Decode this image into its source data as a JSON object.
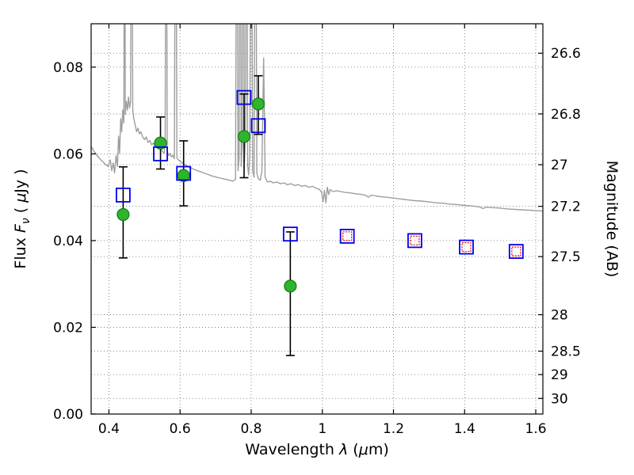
{
  "figure": {
    "background": "#ffffff"
  },
  "chart_data": {
    "type": "scatter",
    "title": "",
    "xlabel": "Wavelength λ (μm)",
    "xlabel_parts": [
      {
        "t": "Wavelength  "
      },
      {
        "t": "λ",
        "i": true
      },
      {
        "t": " ("
      },
      {
        "t": "μ",
        "i": true
      },
      {
        "t": "m)"
      }
    ],
    "ylabel": "Flux Fν ( μJy )",
    "ylabel_parts": [
      {
        "t": "Flux  "
      },
      {
        "t": "F",
        "i": true
      },
      {
        "t": "ν",
        "i": true,
        "sub": true
      },
      {
        "t": "  ( "
      },
      {
        "t": "μ",
        "i": true
      },
      {
        "t": "Jy )"
      }
    ],
    "right_axis_label": "Magnitude (AB)",
    "xlim": [
      0.35,
      1.62
    ],
    "ylim": [
      0.0,
      0.09
    ],
    "grid": true,
    "x_ticks": [
      0.4,
      0.6,
      0.8,
      1.0,
      1.2,
      1.4,
      1.6
    ],
    "x_tick_labels": [
      "0.4",
      "0.6",
      "0.8",
      "1",
      "1.2",
      "1.4",
      "1.6"
    ],
    "y_ticks": [
      0.0,
      0.02,
      0.04,
      0.06,
      0.08
    ],
    "y_tick_labels": [
      "0.00",
      "0.02",
      "0.04",
      "0.06",
      "0.08"
    ],
    "right_ticks": [
      {
        "label": "26.6",
        "flux": 0.0832
      },
      {
        "label": "26.8",
        "flux": 0.0692
      },
      {
        "label": "27",
        "flux": 0.0575
      },
      {
        "label": "27.2",
        "flux": 0.0479
      },
      {
        "label": "27.5",
        "flux": 0.0363
      },
      {
        "label": "28",
        "flux": 0.0229
      },
      {
        "label": "28.5",
        "flux": 0.0145
      },
      {
        "label": "29",
        "flux": 0.0091
      },
      {
        "label": "30",
        "flux": 0.0036
      }
    ],
    "colors": {
      "spectrum": "#9e9e9e",
      "observed_fill": "#2db52d",
      "observed_edge": "#157a15",
      "model_square": "#0000ee",
      "red_square": "#ee1111",
      "errorbar": "#000000",
      "grid": "#555555",
      "axis": "#000000"
    },
    "series": [
      {
        "name": "model-spectrum",
        "type": "line",
        "points": [
          [
            0.35,
            0.0617
          ],
          [
            0.358,
            0.0606
          ],
          [
            0.366,
            0.0597
          ],
          [
            0.374,
            0.0589
          ],
          [
            0.382,
            0.0582
          ],
          [
            0.39,
            0.0576
          ],
          [
            0.398,
            0.0571
          ],
          [
            0.404,
            0.0586
          ],
          [
            0.408,
            0.0561
          ],
          [
            0.412,
            0.0579
          ],
          [
            0.416,
            0.0556
          ],
          [
            0.42,
            0.0596
          ],
          [
            0.424,
            0.0571
          ],
          [
            0.427,
            0.0641
          ],
          [
            0.43,
            0.0601
          ],
          [
            0.433,
            0.0681
          ],
          [
            0.436,
            0.0651
          ],
          [
            0.439,
            0.0701
          ],
          [
            0.442,
            0.0671
          ],
          [
            0.444,
            0.15
          ],
          [
            0.446,
            0.0691
          ],
          [
            0.449,
            0.0721
          ],
          [
            0.452,
            0.0701
          ],
          [
            0.455,
            0.0731
          ],
          [
            0.458,
            0.0706
          ],
          [
            0.461,
            0.0721
          ],
          [
            0.464,
            0.15
          ],
          [
            0.467,
            0.0701
          ],
          [
            0.47,
            0.0681
          ],
          [
            0.474,
            0.0666
          ],
          [
            0.478,
            0.0651
          ],
          [
            0.482,
            0.0659
          ],
          [
            0.486,
            0.0646
          ],
          [
            0.49,
            0.0651
          ],
          [
            0.495,
            0.0639
          ],
          [
            0.5,
            0.0633
          ],
          [
            0.505,
            0.0639
          ],
          [
            0.51,
            0.0626
          ],
          [
            0.515,
            0.0631
          ],
          [
            0.52,
            0.0621
          ],
          [
            0.525,
            0.0625
          ],
          [
            0.53,
            0.0616
          ],
          [
            0.535,
            0.0619
          ],
          [
            0.54,
            0.0611
          ],
          [
            0.545,
            0.0614
          ],
          [
            0.55,
            0.0606
          ],
          [
            0.555,
            0.0601
          ],
          [
            0.558,
            0.0621
          ],
          [
            0.561,
            0.15
          ],
          [
            0.564,
            0.0606
          ],
          [
            0.568,
            0.0596
          ],
          [
            0.572,
            0.0601
          ],
          [
            0.576,
            0.0593
          ],
          [
            0.58,
            0.0597
          ],
          [
            0.584,
            0.0589
          ],
          [
            0.588,
            0.15
          ],
          [
            0.591,
            0.0591
          ],
          [
            0.595,
            0.0586
          ],
          [
            0.6,
            0.0583
          ],
          [
            0.608,
            0.0578
          ],
          [
            0.616,
            0.0574
          ],
          [
            0.624,
            0.057
          ],
          [
            0.632,
            0.0567
          ],
          [
            0.64,
            0.0564
          ],
          [
            0.65,
            0.0561
          ],
          [
            0.66,
            0.0558
          ],
          [
            0.67,
            0.0555
          ],
          [
            0.68,
            0.0552
          ],
          [
            0.69,
            0.0549
          ],
          [
            0.7,
            0.0547
          ],
          [
            0.712,
            0.0544
          ],
          [
            0.724,
            0.0542
          ],
          [
            0.736,
            0.054
          ],
          [
            0.748,
            0.0537
          ],
          [
            0.756,
            0.0541
          ],
          [
            0.76,
            0.15
          ],
          [
            0.763,
            0.0561
          ],
          [
            0.766,
            0.0591
          ],
          [
            0.769,
            0.15
          ],
          [
            0.772,
            0.0571
          ],
          [
            0.775,
            0.0621
          ],
          [
            0.778,
            0.15
          ],
          [
            0.781,
            0.0581
          ],
          [
            0.784,
            0.0641
          ],
          [
            0.787,
            0.15
          ],
          [
            0.79,
            0.0571
          ],
          [
            0.793,
            0.0551
          ],
          [
            0.796,
            0.0601
          ],
          [
            0.8,
            0.15
          ],
          [
            0.804,
            0.0561
          ],
          [
            0.808,
            0.0546
          ],
          [
            0.812,
            0.15
          ],
          [
            0.816,
            0.0556
          ],
          [
            0.82,
            0.0543
          ],
          [
            0.826,
            0.0539
          ],
          [
            0.83,
            0.0561
          ],
          [
            0.835,
            0.0821
          ],
          [
            0.839,
            0.0546
          ],
          [
            0.846,
            0.0535
          ],
          [
            0.854,
            0.0537
          ],
          [
            0.862,
            0.0533
          ],
          [
            0.872,
            0.0535
          ],
          [
            0.882,
            0.0531
          ],
          [
            0.892,
            0.0533
          ],
          [
            0.902,
            0.0529
          ],
          [
            0.912,
            0.0531
          ],
          [
            0.922,
            0.0527
          ],
          [
            0.932,
            0.0529
          ],
          [
            0.942,
            0.0525
          ],
          [
            0.952,
            0.0527
          ],
          [
            0.962,
            0.0523
          ],
          [
            0.972,
            0.0525
          ],
          [
            0.982,
            0.0521
          ],
          [
            0.992,
            0.0518
          ],
          [
            0.998,
            0.0512
          ],
          [
            1.002,
            0.0489
          ],
          [
            1.006,
            0.0516
          ],
          [
            1.01,
            0.0487
          ],
          [
            1.014,
            0.0523
          ],
          [
            1.018,
            0.0506
          ],
          [
            1.022,
            0.0518
          ],
          [
            1.03,
            0.0513
          ],
          [
            1.04,
            0.0515
          ],
          [
            1.052,
            0.0513
          ],
          [
            1.064,
            0.0511
          ],
          [
            1.078,
            0.051
          ],
          [
            1.092,
            0.0508
          ],
          [
            1.106,
            0.0507
          ],
          [
            1.12,
            0.0505
          ],
          [
            1.13,
            0.05
          ],
          [
            1.138,
            0.0505
          ],
          [
            1.15,
            0.0503
          ],
          [
            1.165,
            0.0501
          ],
          [
            1.18,
            0.05
          ],
          [
            1.2,
            0.0498
          ],
          [
            1.22,
            0.0496
          ],
          [
            1.24,
            0.0494
          ],
          [
            1.26,
            0.0492
          ],
          [
            1.28,
            0.0491
          ],
          [
            1.3,
            0.0489
          ],
          [
            1.32,
            0.0487
          ],
          [
            1.34,
            0.0486
          ],
          [
            1.36,
            0.0484
          ],
          [
            1.38,
            0.0483
          ],
          [
            1.4,
            0.0481
          ],
          [
            1.42,
            0.048
          ],
          [
            1.44,
            0.0478
          ],
          [
            1.452,
            0.0474
          ],
          [
            1.46,
            0.0477
          ],
          [
            1.48,
            0.0476
          ],
          [
            1.5,
            0.0475
          ],
          [
            1.52,
            0.0473
          ],
          [
            1.54,
            0.0472
          ],
          [
            1.56,
            0.0471
          ],
          [
            1.58,
            0.047
          ],
          [
            1.6,
            0.0469
          ],
          [
            1.62,
            0.0468
          ]
        ]
      },
      {
        "name": "observed-photometry",
        "type": "scatter",
        "marker": "circle",
        "points": [
          {
            "x": 0.44,
            "y": 0.046,
            "lo": 0.036,
            "hi": 0.057
          },
          {
            "x": 0.545,
            "y": 0.0625,
            "lo": 0.0565,
            "hi": 0.0685
          },
          {
            "x": 0.61,
            "y": 0.055,
            "lo": 0.048,
            "hi": 0.063
          },
          {
            "x": 0.78,
            "y": 0.064,
            "lo": 0.0545,
            "hi": 0.0738
          },
          {
            "x": 0.82,
            "y": 0.0715,
            "lo": 0.0645,
            "hi": 0.078
          },
          {
            "x": 0.91,
            "y": 0.0295,
            "lo": 0.0135,
            "hi": 0.042
          }
        ]
      },
      {
        "name": "model-photometry",
        "type": "scatter",
        "marker": "open-square",
        "points": [
          {
            "x": 0.44,
            "y": 0.0505
          },
          {
            "x": 0.545,
            "y": 0.06
          },
          {
            "x": 0.61,
            "y": 0.0555
          },
          {
            "x": 0.78,
            "y": 0.073
          },
          {
            "x": 0.82,
            "y": 0.0665
          },
          {
            "x": 0.91,
            "y": 0.0415
          },
          {
            "x": 1.07,
            "y": 0.041
          },
          {
            "x": 1.26,
            "y": 0.04
          },
          {
            "x": 1.405,
            "y": 0.0385
          },
          {
            "x": 1.545,
            "y": 0.0375
          }
        ]
      },
      {
        "name": "ir-photometry-red",
        "type": "scatter",
        "marker": "open-square-small",
        "points": [
          {
            "x": 1.07,
            "y": 0.041
          },
          {
            "x": 1.26,
            "y": 0.04
          },
          {
            "x": 1.405,
            "y": 0.0385
          },
          {
            "x": 1.545,
            "y": 0.0375
          }
        ]
      }
    ]
  }
}
